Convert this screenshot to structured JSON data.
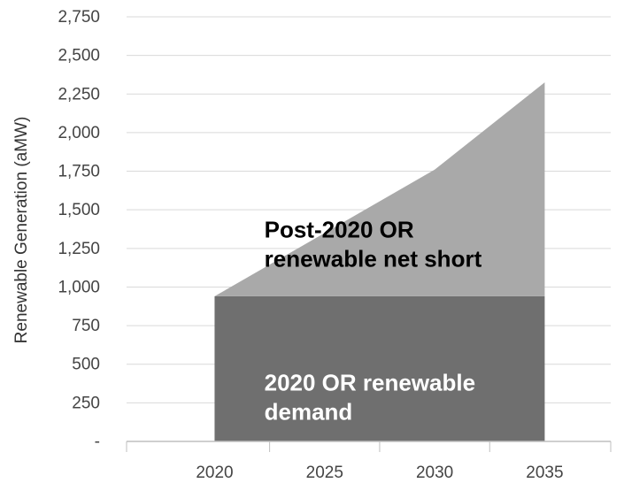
{
  "chart_data": {
    "type": "area",
    "x": [
      2020,
      2030,
      2035
    ],
    "xticks": [
      "2020",
      "2025",
      "2030",
      "2035"
    ],
    "xlim": [
      2016,
      2038
    ],
    "ylim": [
      0,
      2750
    ],
    "yticks": [
      "-",
      "250",
      "500",
      "750",
      "1,000",
      "1,250",
      "1,500",
      "1,750",
      "2,000",
      "2,250",
      "2,500",
      "2,750"
    ],
    "ylabel": "Renewable Generation (aMW)",
    "grid": true,
    "stacked": true,
    "series": [
      {
        "name": "2020 OR renewable demand",
        "values": [
          940,
          940,
          940
        ],
        "color": "#6f6f6f"
      },
      {
        "name": "Post-2020 OR renewable net short",
        "values": [
          0,
          820,
          1385
        ],
        "color": "#a9a9a9"
      }
    ],
    "annotations": [
      {
        "lines": [
          "2020 OR renewable",
          "demand"
        ],
        "series": 0,
        "color": "#ffffff"
      },
      {
        "lines": [
          "Post-2020 OR",
          "renewable net short"
        ],
        "series": 1,
        "color": "#000000"
      }
    ]
  }
}
